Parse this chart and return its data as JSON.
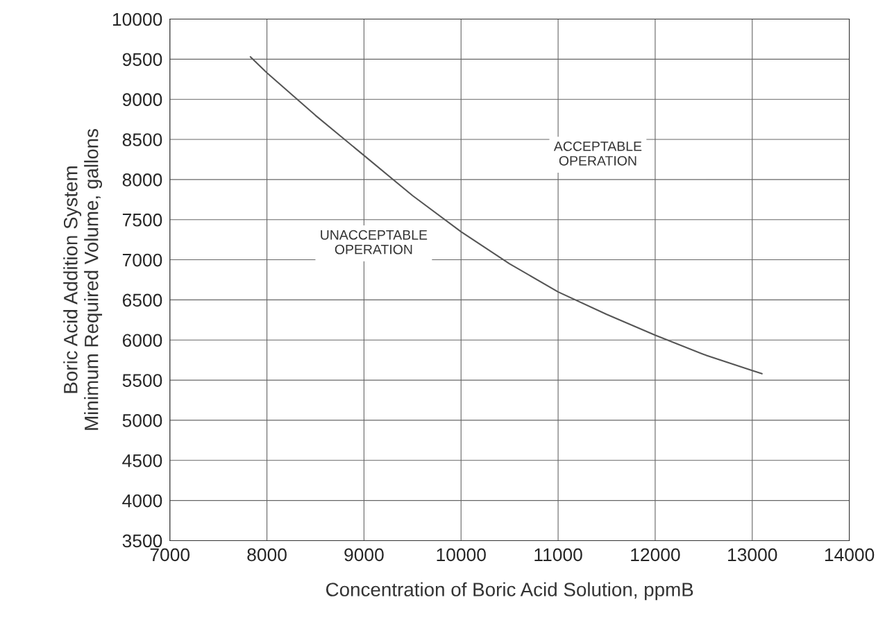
{
  "chart_data": {
    "type": "line",
    "xlabel": "Concentration of Boric Acid Solution, ppmB",
    "ylabel": "Boric Acid Addition System\nMinimum Required Volume, gallons",
    "x": [
      7830,
      8000,
      8500,
      9000,
      9500,
      10000,
      10500,
      11000,
      11500,
      12000,
      12500,
      13000,
      13100
    ],
    "series": [
      {
        "color": "#555555",
        "values": [
          9530,
          9330,
          8800,
          8300,
          7800,
          7350,
          6950,
          6600,
          6320,
          6060,
          5820,
          5620,
          5580
        ]
      }
    ],
    "xlim": [
      7000,
      14000
    ],
    "xticks": [
      7000,
      8000,
      9000,
      10000,
      11000,
      12000,
      13000,
      14000
    ],
    "ylim": [
      3500,
      10000
    ],
    "yticks": [
      3500,
      4000,
      4500,
      5000,
      5500,
      6000,
      6500,
      7000,
      7500,
      8000,
      8500,
      9000,
      9500,
      10000
    ],
    "grid": true,
    "marker": "none",
    "line_style": "solid",
    "annotations": [
      "ACCEPTABLE\nOPERATION",
      "UNACCEPTABLE\nOPERATION"
    ]
  }
}
